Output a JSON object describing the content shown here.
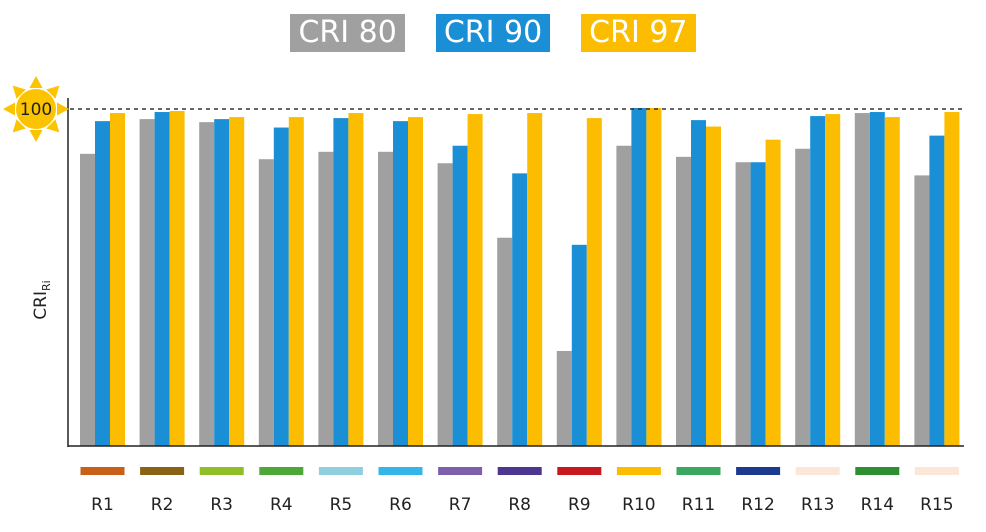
{
  "chart_data": {
    "type": "bar",
    "categories": [
      "R1",
      "R2",
      "R3",
      "R4",
      "R5",
      "R6",
      "R7",
      "R8",
      "R9",
      "R10",
      "R11",
      "R12",
      "R13",
      "R14",
      "R15"
    ],
    "series": [
      {
        "name": "CRI 80",
        "color": "#a0a0a0",
        "values": [
          86.7,
          97.0,
          96.1,
          85.1,
          87.3,
          87.3,
          83.9,
          61.8,
          28.2,
          89.1,
          85.8,
          84.2,
          88.2,
          98.8,
          80.3
        ]
      },
      {
        "name": "CRI 90",
        "color": "#1a8fd6",
        "values": [
          96.4,
          99.1,
          97.0,
          94.5,
          97.3,
          96.4,
          89.1,
          80.9,
          59.7,
          100.3,
          96.7,
          84.2,
          97.9,
          99.1,
          92.1
        ]
      },
      {
        "name": "CRI 97",
        "color": "#fcbd00",
        "values": [
          98.8,
          99.4,
          97.6,
          97.6,
          98.8,
          97.6,
          98.5,
          98.8,
          97.3,
          100.3,
          94.8,
          90.9,
          98.5,
          97.6,
          99.1
        ]
      }
    ],
    "category_colors": [
      "#c8601a",
      "#8a6214",
      "#90be28",
      "#4ea838",
      "#8ed0df",
      "#34b6e8",
      "#7c60ad",
      "#4d3592",
      "#c8181f",
      "#fcbd00",
      "#3aa860",
      "#1c3b8e",
      "#fbe6d8",
      "#2e8f32",
      "#fbe6d8"
    ],
    "reference_line": {
      "value": 100,
      "label": "100",
      "style": "dashed",
      "icon": "sun-icon"
    },
    "ylabel": "CRI",
    "ylabel_sub": "Ri",
    "ylim": [
      0,
      100
    ],
    "grid": false,
    "legend_position": "top-center"
  }
}
